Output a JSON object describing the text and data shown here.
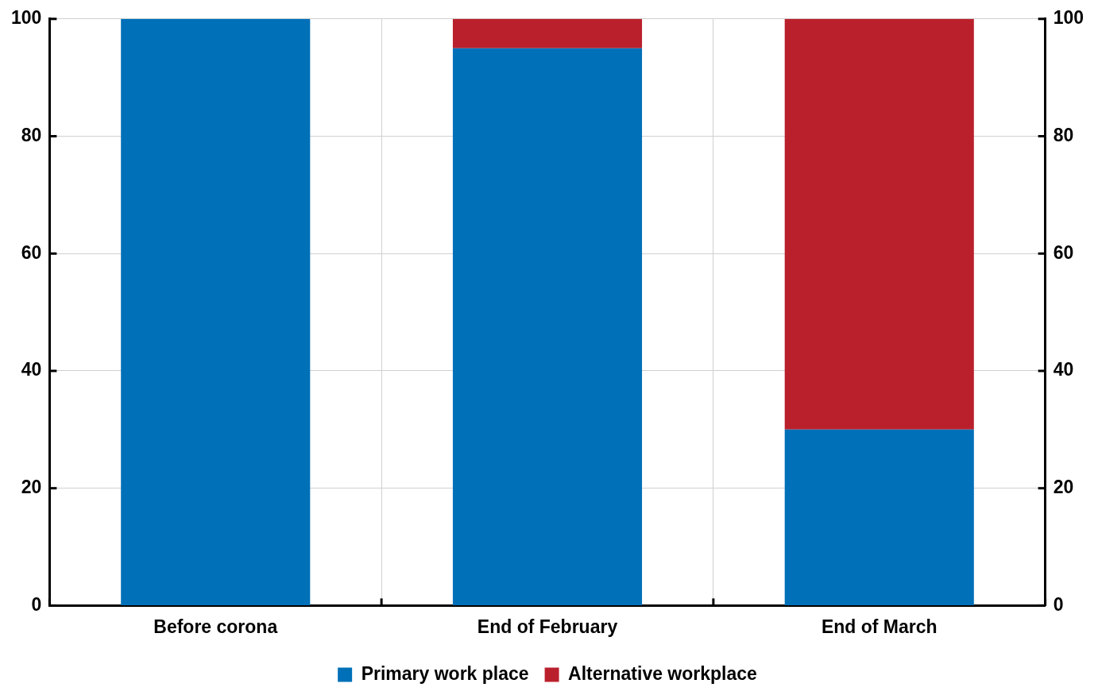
{
  "chart_data": {
    "type": "bar",
    "stacked": true,
    "categories": [
      "Before corona",
      "End of February",
      "End of March"
    ],
    "series": [
      {
        "name": "Primary work place",
        "color": "#0070b8",
        "values": [
          100,
          95,
          30
        ]
      },
      {
        "name": "Alternative workplace",
        "color": "#ba202c",
        "values": [
          0,
          5,
          70
        ]
      }
    ],
    "ylim": [
      0,
      100
    ],
    "yticks": [
      0,
      20,
      40,
      60,
      80,
      100
    ],
    "y2lim": [
      0,
      100
    ],
    "y2ticks": [
      0,
      20,
      40,
      60,
      80,
      100
    ],
    "grid": true,
    "legend": "bottom"
  }
}
